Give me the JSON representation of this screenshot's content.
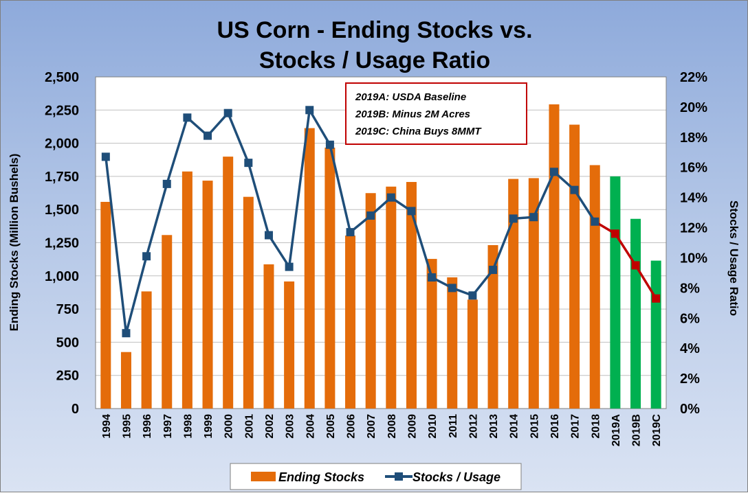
{
  "chart_data": {
    "type": "bar",
    "title": [
      "US Corn - Ending Stocks vs.",
      "Stocks / Usage Ratio"
    ],
    "ylabel_left": "Ending Stocks (Million Bushels)",
    "ylabel_right": "Stocks / Usage Ratio",
    "ylim_left": [
      0,
      2500
    ],
    "ylim_right": [
      0,
      22
    ],
    "left_ticks": [
      "0",
      "250",
      "500",
      "750",
      "1,000",
      "1,250",
      "1,500",
      "1,750",
      "2,000",
      "2,250",
      "2,500"
    ],
    "right_ticks": [
      "0%",
      "2%",
      "4%",
      "6%",
      "8%",
      "10%",
      "12%",
      "14%",
      "16%",
      "18%",
      "20%",
      "22%"
    ],
    "categories": [
      "1994",
      "1995",
      "1996",
      "1997",
      "1998",
      "1999",
      "2000",
      "2001",
      "2002",
      "2003",
      "2004",
      "2005",
      "2006",
      "2007",
      "2008",
      "2009",
      "2010",
      "2011",
      "2012",
      "2013",
      "2014",
      "2015",
      "2016",
      "2017",
      "2018",
      "2019A",
      "2019B",
      "2019C"
    ],
    "series": [
      {
        "name": "Ending Stocks",
        "axis": "left",
        "kind": "bar",
        "values": [
          1558,
          426,
          883,
          1308,
          1787,
          1718,
          1899,
          1596,
          1087,
          958,
          2114,
          1967,
          1304,
          1624,
          1673,
          1708,
          1128,
          989,
          821,
          1232,
          1731,
          1737,
          2293,
          2140,
          1835,
          1750,
          1430,
          1115
        ]
      },
      {
        "name": "Stocks / Usage",
        "axis": "right",
        "kind": "line",
        "values": [
          16.7,
          5.0,
          10.1,
          14.9,
          19.3,
          18.1,
          19.6,
          16.3,
          11.5,
          9.4,
          19.8,
          17.5,
          11.7,
          12.8,
          14.0,
          13.1,
          8.7,
          8.0,
          7.5,
          9.2,
          12.6,
          12.7,
          15.7,
          14.5,
          12.4,
          11.6,
          9.5,
          7.3
        ]
      }
    ],
    "colors": {
      "bar": "#e46c0a",
      "bar_projection": "#00b050",
      "line": "#1f4e79",
      "line_projection": "#c00000",
      "plot_bg": "#ffffff",
      "grid": "#bfbfbf"
    },
    "annotation": [
      "2019A: USDA Baseline",
      "2019B: Minus 2M Acres",
      "2019C: China Buys 8MMT"
    ],
    "legend": [
      "Ending Stocks",
      "Stocks / Usage"
    ],
    "grid": true,
    "legend_position": "bottom"
  }
}
